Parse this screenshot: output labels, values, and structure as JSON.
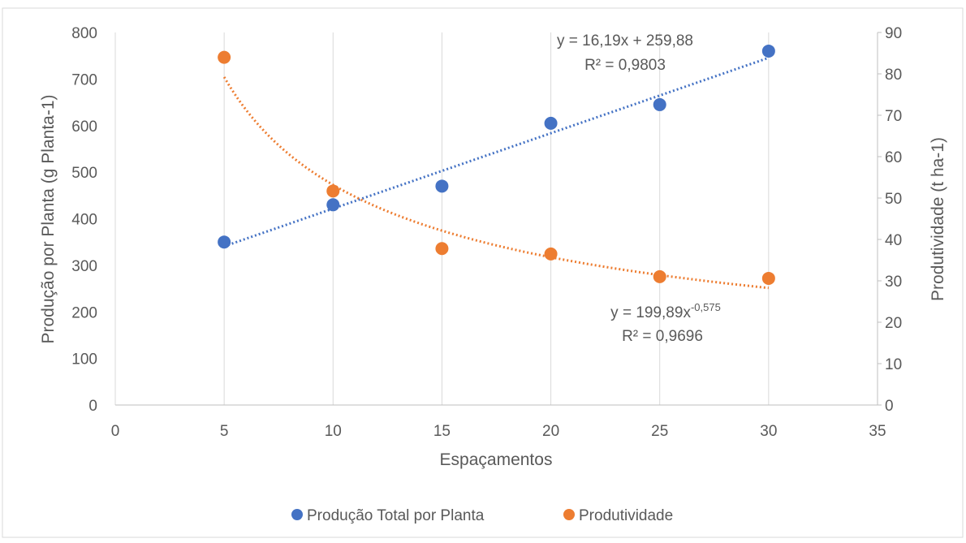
{
  "chart_data": {
    "type": "scatter",
    "title": "",
    "xlabel": "Espaçamentos",
    "ylabel_left": "Produção por Planta (g Planta-1)",
    "ylabel_right": "Produtividade (t ha-1)",
    "xlim": [
      0,
      35
    ],
    "ylim_left": [
      0,
      800
    ],
    "ylim_right": [
      0,
      90
    ],
    "x_ticks": [
      "0",
      "5",
      "10",
      "15",
      "20",
      "25",
      "30",
      "35"
    ],
    "y_left_ticks": [
      "0",
      "100",
      "200",
      "300",
      "400",
      "500",
      "600",
      "700",
      "800"
    ],
    "y_right_ticks": [
      "0",
      "10",
      "20",
      "30",
      "40",
      "50",
      "60",
      "70",
      "80",
      "90"
    ],
    "grid": "vertical",
    "legend_position": "bottom",
    "series": [
      {
        "name": "Produção Total por Planta",
        "axis": "left",
        "color": "#4472C4",
        "x": [
          5,
          10,
          15,
          20,
          25,
          30
        ],
        "y": [
          350,
          430,
          470,
          605,
          645,
          760
        ],
        "trendline": {
          "type": "linear",
          "slope": 16.19,
          "intercept": 259.88,
          "equation": "y = 16,19x + 259,88",
          "r2": "R² = 0,9803"
        }
      },
      {
        "name": "Produtividade",
        "axis": "right",
        "color": "#ED7D31",
        "x": [
          5,
          10,
          15,
          20,
          25,
          30
        ],
        "y": [
          84,
          51.7,
          37.8,
          36.5,
          31,
          30.6
        ],
        "trendline": {
          "type": "power",
          "coef": 199.89,
          "exponent": -0.575,
          "equation_base": "y = 199,89x",
          "equation_exp": "-0,575",
          "r2": "R² = 0,9696"
        }
      }
    ]
  }
}
